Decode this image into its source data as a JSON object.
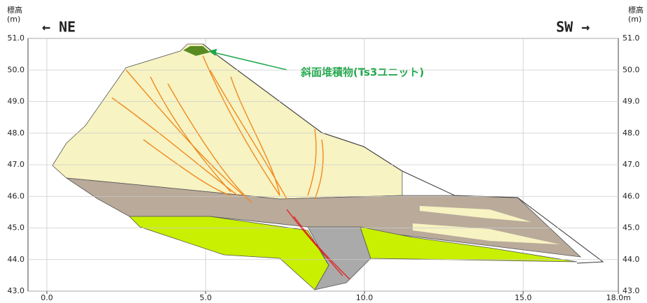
{
  "axis_left": {
    "title": "標高",
    "unit": "(m)"
  },
  "axis_right": {
    "title": "標高",
    "unit": "(m)"
  },
  "direction_left": "← NE",
  "direction_right": "SW →",
  "annotation": "斜面堆積物(Ts3ユニット)",
  "yticks": [
    {
      "value": 51,
      "label": "51.0"
    },
    {
      "value": 50,
      "label": "50.0"
    },
    {
      "value": 49,
      "label": "49.0"
    },
    {
      "value": 48,
      "label": "48.0"
    },
    {
      "value": 47,
      "label": "47.0"
    },
    {
      "value": 46,
      "label": "46.0"
    },
    {
      "value": 45,
      "label": "45.0"
    },
    {
      "value": 44,
      "label": "44.0"
    },
    {
      "value": 43,
      "label": "43.0"
    }
  ],
  "xticks": [
    {
      "value": 0,
      "label": "0.0"
    },
    {
      "value": 5,
      "label": "5.0"
    },
    {
      "value": 10,
      "label": "10.0"
    },
    {
      "value": 15,
      "label": "15.0"
    },
    {
      "value": 18,
      "label": "18.0m"
    }
  ]
}
